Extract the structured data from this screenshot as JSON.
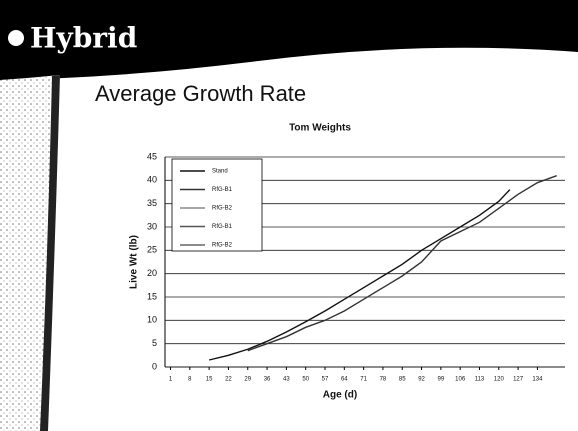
{
  "header": {
    "logo": "Hybrid"
  },
  "slide": {
    "title": "Average Growth Rate"
  },
  "chart_data": {
    "type": "line",
    "title": "Tom Weights",
    "x_label": "Age (d)",
    "y_label": "Live Wt (lb)",
    "xlim": [
      -1,
      144
    ],
    "ylim": [
      0,
      45
    ],
    "xticks": [
      1,
      8,
      15,
      22,
      29,
      36,
      43,
      50,
      57,
      64,
      71,
      78,
      85,
      92,
      99,
      106,
      113,
      120,
      127,
      134
    ],
    "yticks": [
      0,
      5,
      10,
      15,
      20,
      25,
      30,
      35,
      40,
      45
    ],
    "grid": true,
    "legend": "upper left",
    "series": [
      {
        "name": "Stand",
        "color": "#111111",
        "x": [
          15,
          22,
          29,
          36,
          43,
          50,
          57,
          64,
          71,
          78,
          85,
          92,
          99,
          106,
          113,
          120,
          124
        ],
        "values": [
          1.5,
          2.5,
          3.8,
          5.5,
          7.5,
          9.7,
          12,
          14.5,
          17,
          19.5,
          22,
          25,
          27.5,
          30,
          32.5,
          35.5,
          38
        ]
      },
      {
        "name": "RfG-B1",
        "color": "#333333",
        "x": [
          29,
          36,
          43,
          50,
          57,
          64,
          71,
          78,
          85,
          92,
          99,
          106,
          113,
          120,
          127,
          134,
          141
        ],
        "values": [
          3.5,
          5,
          6.5,
          8.5,
          10,
          12,
          14.5,
          17,
          19.5,
          22.5,
          27,
          29,
          31,
          34,
          37,
          39.5,
          41
        ]
      },
      {
        "name": "RfG-B2",
        "color": "#888888",
        "x": [],
        "values": []
      },
      {
        "name": "RfG-B1",
        "color": "#555555",
        "x": [],
        "values": []
      },
      {
        "name": "RfG-B2",
        "color": "#666666",
        "x": [],
        "values": []
      }
    ]
  }
}
